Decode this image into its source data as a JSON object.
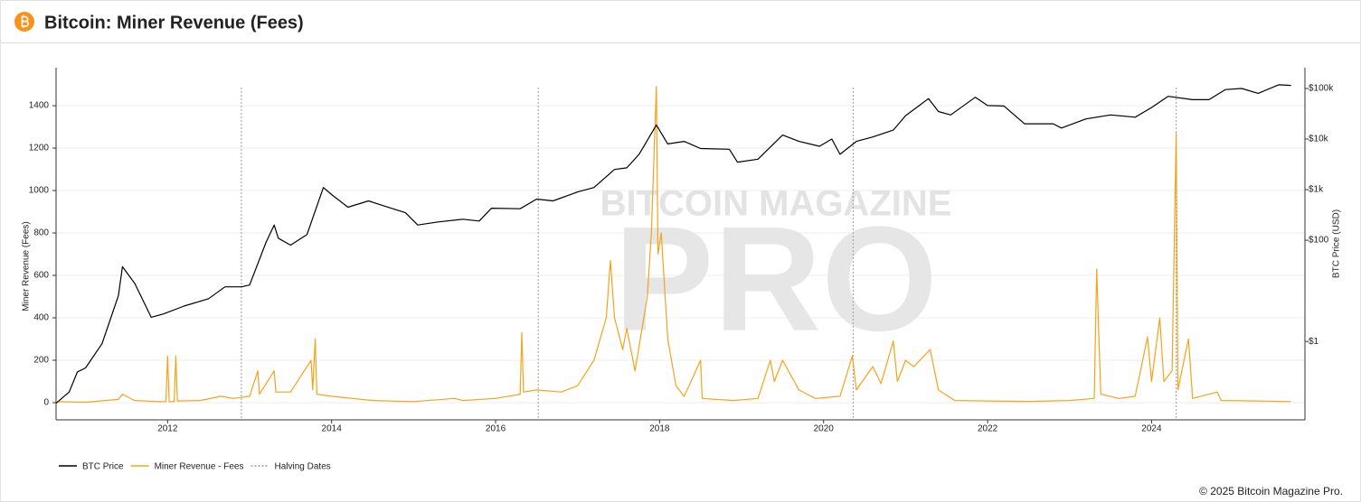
{
  "header": {
    "title": "Bitcoin: Miner Revenue (Fees)"
  },
  "watermark": {
    "line1": "BITCOIN MAGAZINE",
    "line2": "PRO"
  },
  "footer": {
    "text": "© 2025 Bitcoin Magazine Pro."
  },
  "chart_data": {
    "type": "line",
    "ylabel": "Miner Revenue (Fees)",
    "y2label": "BTC Price (USD)",
    "xlim": [
      2010.64,
      2025.87
    ],
    "xticks": [
      2012,
      2014,
      2016,
      2018,
      2020,
      2022,
      2024
    ],
    "ylim": [
      -81,
      1579
    ],
    "yticks": [
      0,
      200,
      400,
      600,
      800,
      1000,
      1200,
      1400
    ],
    "y2lim": [
      0.0282,
      257000
    ],
    "y2scale": "log",
    "y2ticks": [
      {
        "value": 1,
        "label": "$1"
      },
      {
        "value": 100,
        "label": "$100"
      },
      {
        "value": 1000,
        "label": "$1k"
      },
      {
        "value": 10000,
        "label": "$10k"
      },
      {
        "value": 100000,
        "label": "$100k"
      }
    ],
    "grid": true,
    "series": [
      {
        "name": "BTC Price",
        "color": "#000000",
        "axis": "y2",
        "x": [
          2010.64,
          2010.8,
          2010.9,
          2011.0,
          2011.2,
          2011.4,
          2011.45,
          2011.6,
          2011.8,
          2011.95,
          2012.2,
          2012.5,
          2012.7,
          2012.9,
          2013.0,
          2013.2,
          2013.3,
          2013.35,
          2013.5,
          2013.7,
          2013.9,
          2014.0,
          2014.2,
          2014.45,
          2014.6,
          2014.9,
          2015.05,
          2015.3,
          2015.6,
          2015.8,
          2015.95,
          2016.3,
          2016.5,
          2016.7,
          2017.0,
          2017.2,
          2017.45,
          2017.6,
          2017.75,
          2017.96,
          2018.1,
          2018.3,
          2018.5,
          2018.85,
          2018.95,
          2019.2,
          2019.5,
          2019.7,
          2019.95,
          2020.1,
          2020.2,
          2020.4,
          2020.6,
          2020.85,
          2021.0,
          2021.28,
          2021.4,
          2021.55,
          2021.85,
          2022.0,
          2022.2,
          2022.45,
          2022.8,
          2022.9,
          2023.2,
          2023.5,
          2023.8,
          2024.0,
          2024.2,
          2024.5,
          2024.7,
          2024.9,
          2025.1,
          2025.3,
          2025.55,
          2025.7
        ],
        "values": [
          0.06,
          0.1,
          0.25,
          0.3,
          0.9,
          8,
          30,
          14,
          3,
          3.5,
          5,
          7,
          12,
          12,
          13,
          90,
          200,
          110,
          80,
          130,
          1100,
          800,
          450,
          600,
          500,
          350,
          200,
          230,
          260,
          240,
          430,
          420,
          650,
          600,
          900,
          1100,
          2500,
          2700,
          5000,
          19000,
          8000,
          9000,
          6500,
          6300,
          3500,
          4000,
          12000,
          9000,
          7200,
          10000,
          5000,
          9000,
          11000,
          15000,
          29000,
          63000,
          35000,
          30000,
          67000,
          46000,
          45000,
          20000,
          20000,
          16500,
          25000,
          30000,
          27000,
          42000,
          70000,
          60000,
          60000,
          95000,
          100000,
          80000,
          118000,
          115000
        ]
      },
      {
        "name": "Miner Revenue - Fees",
        "color": "#f7a21b",
        "x": [
          2010.64,
          2011.0,
          2011.4,
          2011.45,
          2011.6,
          2011.9,
          2011.98,
          2012.0,
          2012.02,
          2012.08,
          2012.1,
          2012.12,
          2012.4,
          2012.65,
          2012.8,
          2013.0,
          2013.1,
          2013.12,
          2013.3,
          2013.32,
          2013.5,
          2013.75,
          2013.77,
          2013.8,
          2013.82,
          2014.0,
          2014.5,
          2015.0,
          2015.5,
          2015.6,
          2016.0,
          2016.3,
          2016.32,
          2016.34,
          2016.5,
          2016.8,
          2017.0,
          2017.2,
          2017.35,
          2017.4,
          2017.45,
          2017.55,
          2017.6,
          2017.7,
          2017.85,
          2017.9,
          2017.96,
          2017.98,
          2018.02,
          2018.1,
          2018.2,
          2018.3,
          2018.5,
          2018.52,
          2018.9,
          2019.2,
          2019.35,
          2019.4,
          2019.5,
          2019.7,
          2019.9,
          2020.2,
          2020.35,
          2020.4,
          2020.6,
          2020.7,
          2020.85,
          2020.9,
          2021.0,
          2021.1,
          2021.3,
          2021.4,
          2021.6,
          2022.0,
          2022.5,
          2023.0,
          2023.3,
          2023.33,
          2023.38,
          2023.6,
          2023.8,
          2023.95,
          2024.0,
          2024.1,
          2024.15,
          2024.25,
          2024.3,
          2024.32,
          2024.45,
          2024.5,
          2024.8,
          2024.85,
          2025.3,
          2025.7
        ],
        "values": [
          5,
          2,
          15,
          40,
          10,
          5,
          5,
          220,
          5,
          5,
          220,
          8,
          10,
          30,
          20,
          30,
          150,
          40,
          150,
          50,
          50,
          200,
          60,
          300,
          40,
          30,
          10,
          5,
          20,
          10,
          20,
          40,
          330,
          50,
          60,
          50,
          80,
          200,
          400,
          670,
          400,
          250,
          350,
          150,
          500,
          800,
          1490,
          700,
          800,
          300,
          80,
          30,
          200,
          20,
          10,
          20,
          200,
          100,
          200,
          60,
          20,
          30,
          220,
          60,
          170,
          90,
          290,
          100,
          200,
          170,
          250,
          60,
          10,
          8,
          6,
          10,
          20,
          630,
          40,
          20,
          30,
          310,
          100,
          400,
          100,
          150,
          1270,
          60,
          300,
          20,
          50,
          10,
          8,
          5
        ]
      }
    ],
    "halvings": {
      "name": "Halving Dates",
      "color": "#9a9a9a",
      "x": [
        2012.9,
        2016.52,
        2020.36,
        2024.3
      ]
    }
  }
}
